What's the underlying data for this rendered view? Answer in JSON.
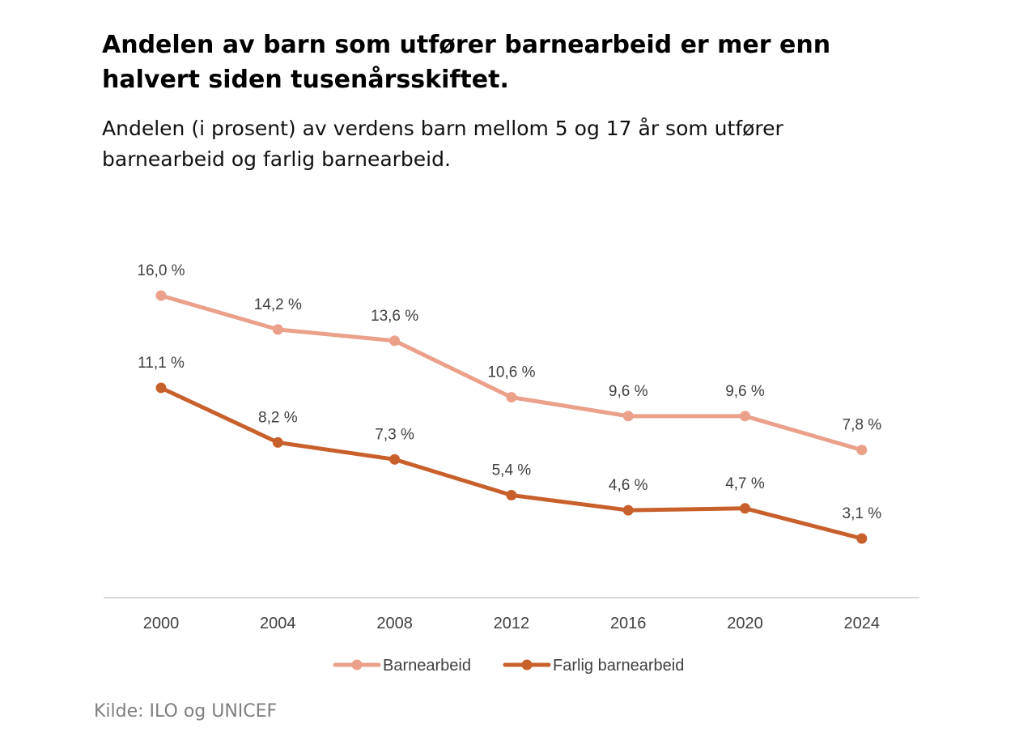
{
  "header": {
    "title": "Andelen av barn som utfører barnearbeid er mer enn halvert siden tusenårsskiftet.",
    "subtitle": "Andelen (i prosent) av verdens barn mellom 5 og 17 år som utfører barnearbeid og farlig barnearbeid."
  },
  "source": "Kilde: ILO og UNICEF",
  "chart_data": {
    "type": "line",
    "x": [
      "2000",
      "2004",
      "2008",
      "2012",
      "2016",
      "2020",
      "2024"
    ],
    "series": [
      {
        "name": "Barnearbeid",
        "color": "#EBA08A",
        "values": [
          16.0,
          14.2,
          13.6,
          10.6,
          9.6,
          9.6,
          7.8
        ],
        "labels": [
          "16,0 %",
          "14,2 %",
          "13,6 %",
          "10,6 %",
          "9,6 %",
          "9,6 %",
          "7,8 %"
        ]
      },
      {
        "name": "Farlig barnearbeid",
        "color": "#C8602C",
        "values": [
          11.1,
          8.2,
          7.3,
          5.4,
          4.6,
          4.7,
          3.1
        ],
        "labels": [
          "11,1 %",
          "8,2 %",
          "7,3 %",
          "5,4 %",
          "4,6 %",
          "4,7 %",
          "3,1 %"
        ]
      }
    ],
    "ylim": [
      0,
      18
    ],
    "grid": false,
    "legend_position": "bottom",
    "axis_color": "#D9D9D9"
  }
}
